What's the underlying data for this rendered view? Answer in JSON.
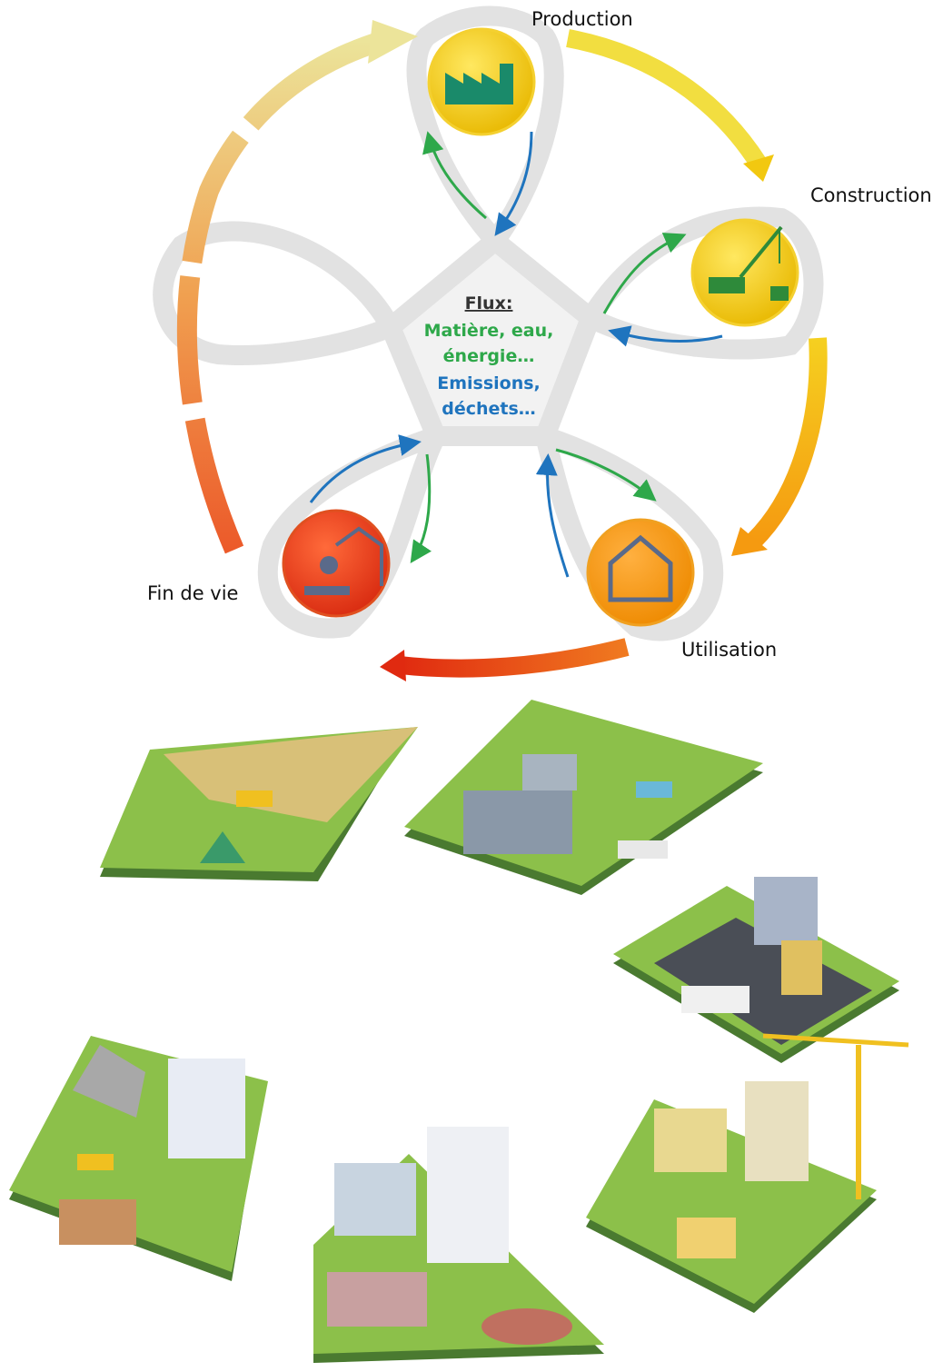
{
  "stages": [
    {
      "label": "Production"
    },
    {
      "label": "Construction"
    },
    {
      "label": "Utilisation"
    },
    {
      "label": "Fin de vie"
    }
  ],
  "center": {
    "title": "Flux:",
    "green_lines": [
      "Matière, eau,",
      "énergie…"
    ],
    "blue_lines": [
      "Emissions,",
      "déchets…"
    ]
  }
}
